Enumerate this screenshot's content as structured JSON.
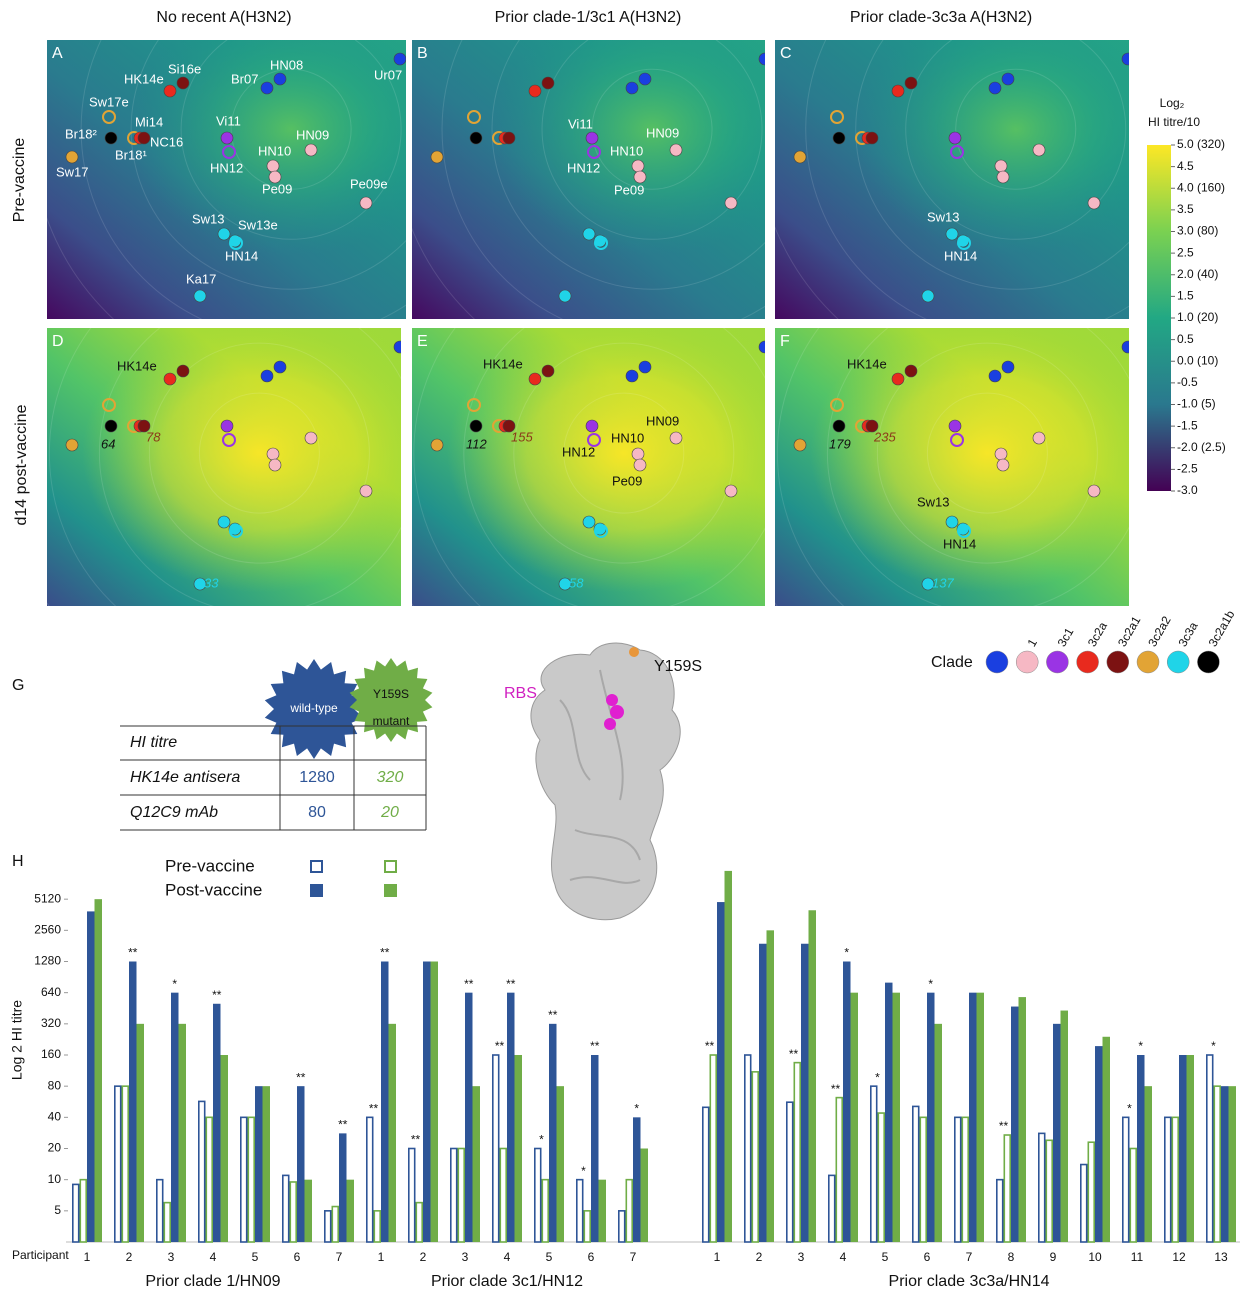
{
  "column_titles": [
    "No recent A(H3N2)",
    "Prior clade-1/3c1 A(H3N2)",
    "Prior clade-3c3a A(H3N2)"
  ],
  "row_titles": [
    "Pre-vaccine",
    "d14 post-vaccine"
  ],
  "panels": [
    {
      "letter": "A",
      "labels": [
        "HK14e",
        "Si16e",
        "Br07",
        "HN08",
        "Ur07",
        "Sw17e",
        "Br18²",
        "Mi14",
        "NC16",
        "Br18¹",
        "Sw17",
        "Vi11",
        "HN09",
        "HN10",
        "HN12",
        "Pe09",
        "Pe09e",
        "Sw13",
        "Sw13e",
        "HN14",
        "Ka17"
      ]
    },
    {
      "letter": "B",
      "labels": [
        "Vi11",
        "HN09",
        "HN10",
        "HN12",
        "Pe09"
      ]
    },
    {
      "letter": "C",
      "labels": [
        "Sw13",
        "HN14"
      ]
    },
    {
      "letter": "D",
      "labels": [
        "HK14e"
      ],
      "titres": [
        64,
        78,
        33
      ]
    },
    {
      "letter": "E",
      "labels": [
        "HK14e",
        "HN09",
        "HN10",
        "HN12",
        "Pe09"
      ],
      "titres": [
        112,
        155,
        58
      ]
    },
    {
      "letter": "F",
      "labels": [
        "HK14e",
        "Sw13",
        "HN14"
      ],
      "titres": [
        179,
        235,
        137
      ]
    }
  ],
  "colorbar": {
    "title": [
      "Log₂",
      "HI titre/10"
    ],
    "lim": [
      -3,
      5
    ],
    "ticks": [
      {
        "value": 5,
        "label": "5.0 (320)"
      },
      4.5,
      {
        "value": 4,
        "label": "4.0 (160)"
      },
      3.5,
      {
        "value": 3,
        "label": "3.0 (80)"
      },
      2.5,
      {
        "value": 2,
        "label": "2.0 (40)"
      },
      1.5,
      {
        "value": 1,
        "label": "1.0 (20)"
      },
      0.5,
      {
        "value": 0,
        "label": "0.0 (10)"
      },
      -0.5,
      {
        "value": -1,
        "label": "-1.0 (5)"
      },
      -1.5,
      {
        "value": -2,
        "label": "-2.0 (2.5)"
      },
      -2.5,
      {
        "value": -3,
        "label": "-3.0"
      }
    ]
  },
  "clade_legend": {
    "title": "Clade",
    "clades": [
      {
        "name": null,
        "color": "#1a3fe0"
      },
      {
        "name": "1",
        "color": "#f6b8c4"
      },
      {
        "name": "3c1",
        "color": "#9a34e4"
      },
      {
        "name": "3c2a",
        "color": "#e82a1e"
      },
      {
        "name": "3c2a1",
        "color": "#7c1212"
      },
      {
        "name": "3c2a2",
        "color": "#e2a435"
      },
      {
        "name": "3c3a",
        "color": "#20d4e8"
      },
      {
        "name": "3c2a1b",
        "color": "#000000"
      }
    ]
  },
  "panel_g": {
    "letter": "G",
    "badges": [
      [
        "wild-type"
      ],
      [
        "Y159S",
        "mutant"
      ]
    ],
    "table": {
      "header": "HI titre",
      "rows": [
        {
          "label": "HK14e antisera",
          "wild_type": 1280,
          "mutant": 320
        },
        {
          "label": "Q12C9 mAb",
          "wild_type": 80,
          "mutant": 20
        }
      ]
    },
    "structure_labels": [
      "RBS",
      "Y159S"
    ]
  },
  "chart_data": {
    "type": "bar",
    "letter": "H",
    "y_label": "Log 2 HI titre",
    "x_label": "Participant",
    "log_scale": true,
    "ylim": [
      2.5,
      10240
    ],
    "yticks": [
      5,
      10,
      20,
      40,
      80,
      160,
      320,
      640,
      1280,
      2560,
      5120
    ],
    "colors": {
      "wild_type": "#2e5597",
      "mutant": "#70ad47"
    },
    "legend": [
      {
        "name": "Pre-vaccine",
        "filled": false
      },
      {
        "name": "Post-vaccine",
        "filled": true
      }
    ],
    "groups": [
      {
        "label": "Prior clade 1/HN09",
        "participants": [
          1,
          2,
          3,
          4,
          5,
          6,
          7
        ],
        "pre_wild_type": [
          9,
          80,
          10,
          57,
          40,
          11,
          5
        ],
        "pre_mutant": [
          10,
          80,
          6,
          40,
          40,
          9.5,
          5.5
        ],
        "post_wild_type": [
          3900,
          1280,
          640,
          500,
          80,
          80,
          28
        ],
        "post_mutant": [
          5120,
          320,
          320,
          160,
          80,
          10,
          10
        ],
        "pre_significance": [
          null,
          null,
          null,
          null,
          null,
          null,
          null
        ],
        "post_significance": [
          null,
          "**",
          "*",
          "**",
          null,
          "**",
          "**"
        ]
      },
      {
        "label": "Prior clade 3c1/HN12",
        "participants": [
          1,
          2,
          3,
          4,
          5,
          6,
          7
        ],
        "pre_wild_type": [
          40,
          20,
          20,
          160,
          20,
          10,
          5
        ],
        "pre_mutant": [
          5,
          6,
          20,
          20,
          10,
          5,
          10
        ],
        "post_wild_type": [
          1280,
          1280,
          640,
          640,
          320,
          160,
          40
        ],
        "post_mutant": [
          320,
          1280,
          80,
          160,
          80,
          10,
          20
        ],
        "pre_significance": [
          "**",
          "**",
          null,
          "**",
          "*",
          "*",
          null
        ],
        "post_significance": [
          "**",
          null,
          "**",
          "**",
          "**",
          "**",
          "*"
        ]
      },
      {
        "label": "Prior clade 3c3a/HN14",
        "participants": [
          1,
          2,
          3,
          4,
          5,
          6,
          7,
          8,
          9,
          10,
          11,
          12,
          13
        ],
        "pre_wild_type": [
          50,
          160,
          56,
          11,
          80,
          51,
          40,
          10,
          28,
          14,
          40,
          40,
          160
        ],
        "pre_mutant": [
          160,
          110,
          135,
          62,
          44,
          40,
          40,
          27,
          24,
          23,
          20,
          40,
          80
        ],
        "post_wild_type": [
          4800,
          1900,
          1900,
          1280,
          800,
          640,
          640,
          470,
          320,
          195,
          160,
          160,
          80
        ],
        "post_mutant": [
          9600,
          2560,
          4000,
          640,
          640,
          320,
          640,
          580,
          430,
          240,
          80,
          160,
          80
        ],
        "pre_significance": [
          "**",
          null,
          "**",
          "**",
          "*",
          null,
          null,
          "**",
          null,
          null,
          "*",
          null,
          "*"
        ],
        "post_significance": [
          null,
          null,
          null,
          "*",
          null,
          "*",
          null,
          null,
          null,
          null,
          "*",
          null,
          null
        ]
      }
    ]
  }
}
